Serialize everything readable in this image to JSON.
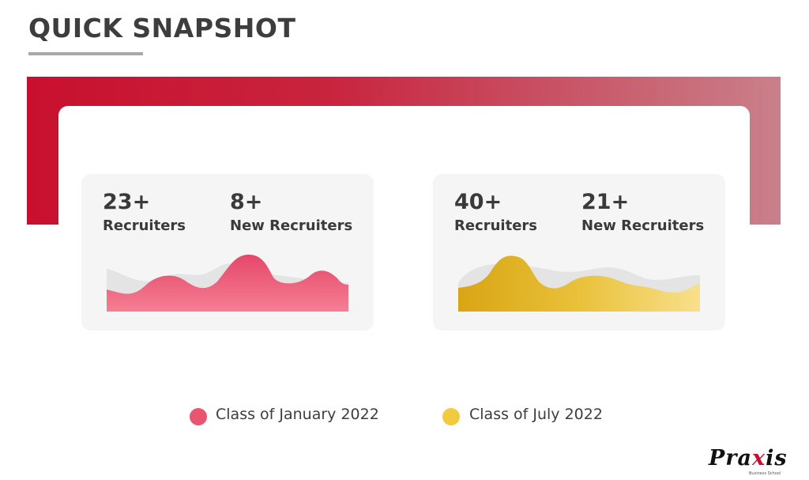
{
  "title": "QUICK SNAPSHOT",
  "colors": {
    "brand_red": "#c8102e",
    "january_series": "#e9556e",
    "july_series": "#e8bd2a"
  },
  "cards": [
    {
      "stats": [
        {
          "value": "23+",
          "label": "Recruiters"
        },
        {
          "value": "8+",
          "label": "New Recruiters"
        }
      ]
    },
    {
      "stats": [
        {
          "value": "40+",
          "label": "Recruiters"
        },
        {
          "value": "21+",
          "label": "New Recruiters"
        }
      ]
    }
  ],
  "legend": [
    {
      "label": "Class of January 2022",
      "color": "#e9556e"
    },
    {
      "label": "Class of July 2022",
      "color": "#f2ca3e"
    }
  ],
  "logo": {
    "text_pre": "Pra",
    "text_accent": "x",
    "text_post": "is",
    "subtext": "Business School"
  }
}
